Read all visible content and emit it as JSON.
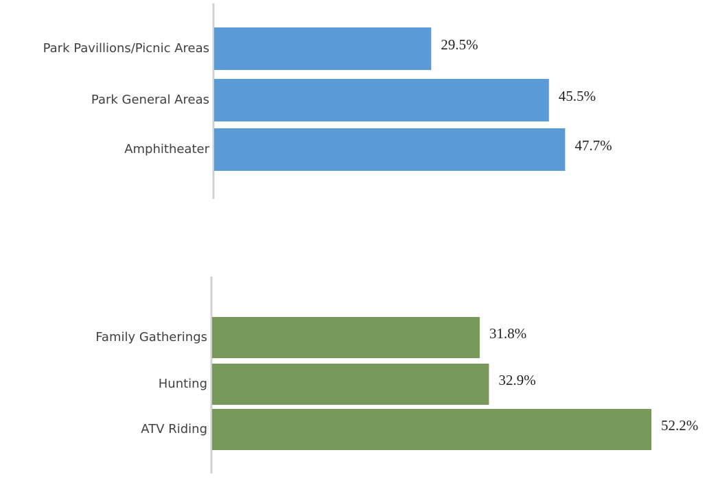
{
  "chart_data": [
    {
      "type": "bar",
      "orientation": "horizontal",
      "categories": [
        "Park Pavillions/Picnic Areas",
        "Park General Areas",
        "Amphitheater"
      ],
      "values": [
        29.5,
        45.5,
        47.7
      ],
      "value_labels": [
        "29.5%",
        "45.5%",
        "47.7%"
      ],
      "color": "#5b9bd5"
    },
    {
      "type": "bar",
      "orientation": "horizontal",
      "categories": [
        "Family Gatherings",
        "Hunting",
        "ATV Riding"
      ],
      "values": [
        31.8,
        32.9,
        52.2
      ],
      "value_labels": [
        "31.8%",
        "32.9%",
        "52.2%"
      ],
      "color": "#77995a"
    }
  ]
}
